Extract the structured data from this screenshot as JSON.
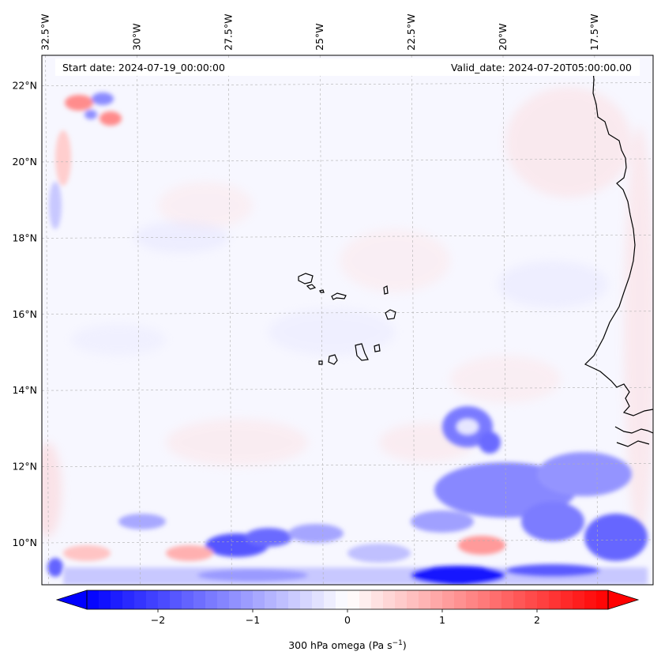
{
  "map": {
    "start_label": "Start date: 2024-07-19_00:00:00",
    "valid_label": "Valid_date: 2024-07-20T05:00:00.00",
    "lon_ticks": [
      "32.5°W",
      "30°W",
      "27.5°W",
      "25°W",
      "22.5°W",
      "20°W",
      "17.5°W"
    ],
    "lat_ticks": [
      "22°N",
      "20°N",
      "18°N",
      "16°N",
      "14°N",
      "12°N",
      "10°N"
    ],
    "lon_values": [
      -32.5,
      -30,
      -27.5,
      -25,
      -22.5,
      -20,
      -17.5
    ],
    "lat_values": [
      22,
      20,
      18,
      16,
      14,
      12,
      10
    ],
    "extent": {
      "lon_min": -32.6,
      "lon_max": -15.9,
      "lat_min": 8.9,
      "lat_max": 22.8
    },
    "colormap": {
      "name": "bwr",
      "low": "#0000ff",
      "mid": "#ffffff",
      "high": "#ff0000"
    },
    "coastline_color": "#000000",
    "grid": true
  },
  "colorbar": {
    "label_prefix": "300 hPa omega (Pa s",
    "label_exp": "−1",
    "label_suffix": ")",
    "vmin": -2.75,
    "vmax": 2.75,
    "tick_values": [
      -2,
      -1,
      0,
      1,
      2
    ],
    "tick_labels": [
      "−2",
      "−1",
      "0",
      "1",
      "2"
    ],
    "extend": "both"
  }
}
